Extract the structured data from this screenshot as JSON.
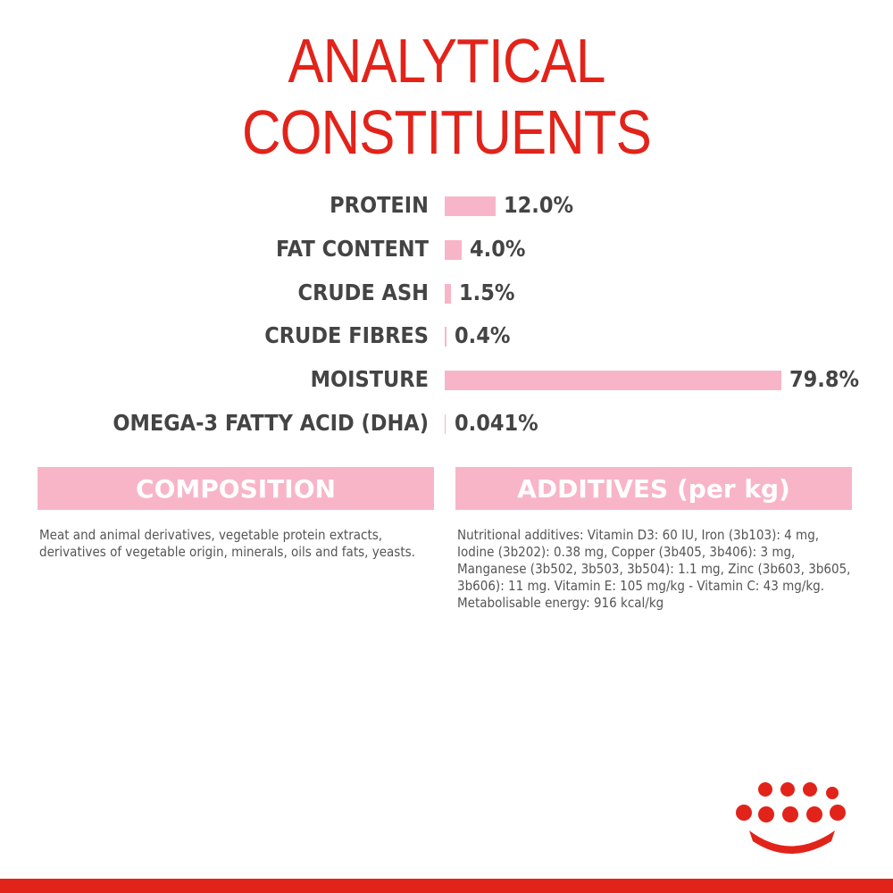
{
  "chart_data": {
    "type": "bar",
    "orientation": "horizontal",
    "title": "ANALYTICAL CONSTITUENTS",
    "categories": [
      "PROTEIN",
      "FAT CONTENT",
      "CRUDE ASH",
      "CRUDE FIBRES",
      "MOISTURE",
      "OMEGA-3 FATTY ACID (DHA)"
    ],
    "values": [
      12.0,
      4.0,
      1.5,
      0.4,
      79.8,
      0.041
    ],
    "value_labels": [
      "12.0%",
      "4.0%",
      "1.5%",
      "0.4%",
      "79.8%",
      "0.041%"
    ],
    "color": "#f8b5c8"
  },
  "composition": {
    "title": "COMPOSITION",
    "text": "Meat and animal derivatives, vegetable protein extracts, derivatives of vegetable origin, minerals, oils and fats, yeasts."
  },
  "additives": {
    "title": "ADDITIVES (per kg)",
    "text": "Nutritional additives: Vitamin D3: 60 IU, Iron (3b103): 4 mg, Iodine (3b202): 0.38 mg, Copper (3b405, 3b406): 3 mg, Manganese (3b502, 3b503, 3b504): 1.1 mg, Zinc (3b603, 3b605, 3b606): 11 mg. Vitamin E: 105 mg/kg - Vitamin C: 43 mg/kg. Metabolisable energy: 916 kcal/kg"
  }
}
